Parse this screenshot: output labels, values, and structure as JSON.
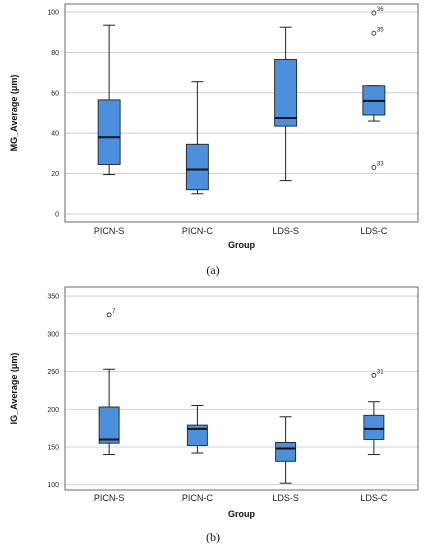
{
  "figure_labels": [
    "(a)",
    "(b)"
  ],
  "chart_data": [
    {
      "type": "box",
      "xlabel": "Group",
      "ylabel": "MG_Average (μm)",
      "ylim": [
        -4,
        104
      ],
      "yticks": [
        0,
        20,
        40,
        60,
        80,
        100
      ],
      "grid": "horizontal",
      "categories": [
        "PICN-S",
        "PICN-C",
        "LDS-S",
        "LDS-C"
      ],
      "boxes": [
        {
          "min": 19.5,
          "q1": 24.5,
          "median": 38,
          "q3": 56.5,
          "max": 93.5
        },
        {
          "min": 10,
          "q1": 12,
          "median": 22,
          "q3": 34.5,
          "max": 65.5
        },
        {
          "min": 16.5,
          "q1": 43.5,
          "median": 47.5,
          "q3": 76.5,
          "max": 92.5
        },
        {
          "min": 46,
          "q1": 49,
          "median": 56,
          "q3": 63.5,
          "max": 63.5
        }
      ],
      "outliers": [
        {
          "category": "LDS-C",
          "value": 99.5,
          "label": "36"
        },
        {
          "category": "LDS-C",
          "value": 89.5,
          "label": "35"
        },
        {
          "category": "LDS-C",
          "value": 23,
          "label": "33"
        }
      ]
    },
    {
      "type": "box",
      "xlabel": "Group",
      "ylabel": "IG_Average (μm)",
      "ylim": [
        93,
        362
      ],
      "yticks": [
        100,
        150,
        200,
        250,
        300,
        350
      ],
      "grid": "horizontal",
      "categories": [
        "PICN-S",
        "PICN-C",
        "LDS-S",
        "LDS-C"
      ],
      "boxes": [
        {
          "min": 140,
          "q1": 155,
          "median": 160,
          "q3": 203,
          "max": 253
        },
        {
          "min": 142,
          "q1": 152,
          "median": 174,
          "q3": 179,
          "max": 205
        },
        {
          "min": 102,
          "q1": 131,
          "median": 148,
          "q3": 156,
          "max": 190
        },
        {
          "min": 140,
          "q1": 160,
          "median": 174,
          "q3": 192,
          "max": 210
        }
      ],
      "outliers": [
        {
          "category": "PICN-S",
          "value": 325,
          "label": "7"
        },
        {
          "category": "LDS-C",
          "value": 245,
          "label": "31"
        }
      ]
    }
  ],
  "colors": {
    "box_fill": "#4c8fdd",
    "box_stroke": "#222222",
    "grid": "#c8c8c8",
    "frame": "#444444"
  }
}
